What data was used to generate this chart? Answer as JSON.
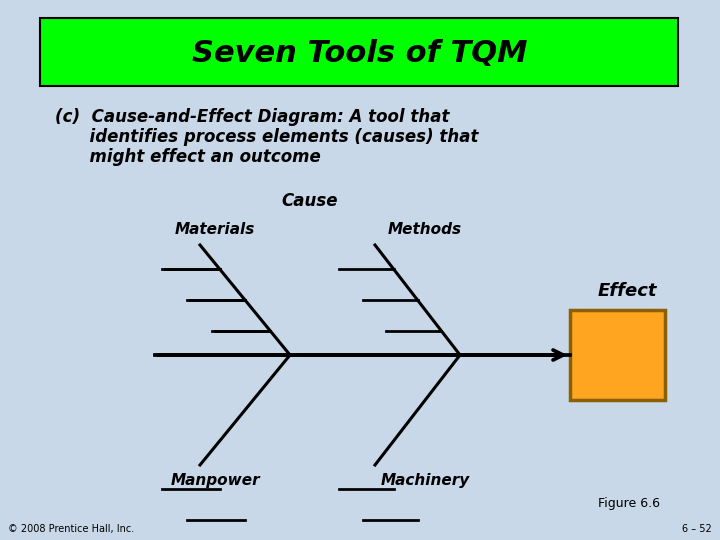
{
  "title": "Seven Tools of TQM",
  "title_bg": "#00FF00",
  "title_fontsize": 22,
  "bg_color": "#C8D8E8",
  "subtitle_line1": "(c)  Cause-and-Effect Diagram: A tool that",
  "subtitle_line2": "      identifies process elements (causes) that",
  "subtitle_line3": "      might effect an outcome",
  "subtitle_fontsize": 12,
  "cause_label": "Cause",
  "effect_label": "Effect",
  "labels": [
    "Materials",
    "Methods",
    "Manpower",
    "Machinery"
  ],
  "footer_left": "© 2008 Prentice Hall, Inc.",
  "footer_right": "6 – 52",
  "figure_label": "Figure 6.6",
  "box_color": "#FFA520",
  "box_edge_color": "#8B6000",
  "line_color": "#000000",
  "line_width": 2.2
}
